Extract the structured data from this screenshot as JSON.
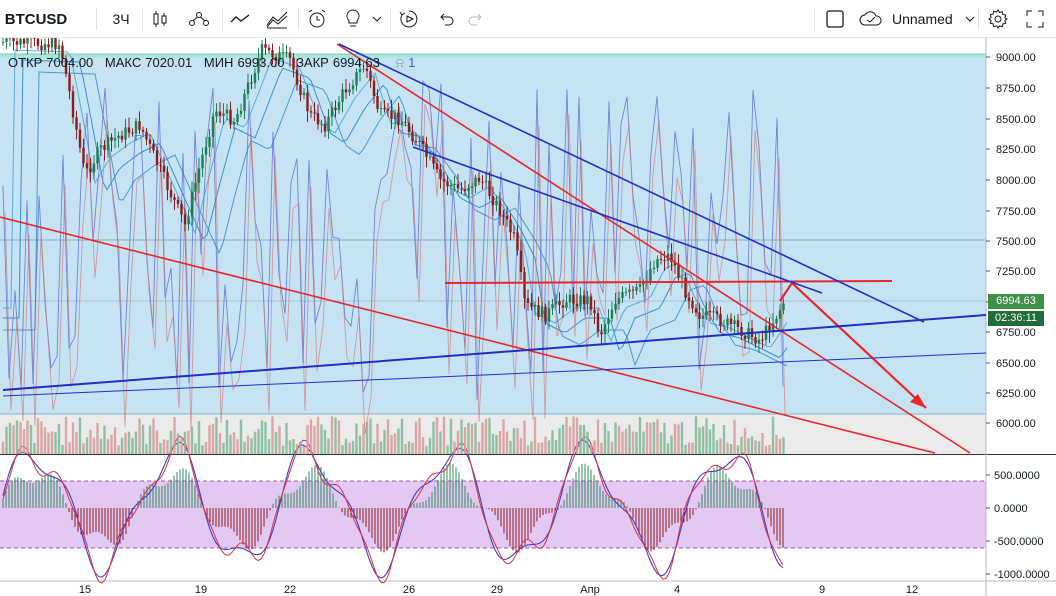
{
  "toolbar": {
    "symbol": "BTCUSD",
    "interval": "3Ч",
    "layout_name": "Unnamed",
    "icons": [
      "candles-icon",
      "indicators-icon",
      "line-icon",
      "compare-icon",
      "alert-icon",
      "bulb-icon",
      "chevron-down-icon",
      "replay-icon",
      "undo-icon",
      "redo-icon",
      "checkbox-icon",
      "cloud-icon",
      "chevron-down-icon",
      "gear-icon",
      "fullscreen-icon"
    ]
  },
  "legend": {
    "open_label": "ОТКР",
    "open_value": "7004.00",
    "high_label": "МАКС",
    "high_value": "7020.01",
    "low_label": "МИН",
    "low_value": "6993.00",
    "close_label": "ЗАКР",
    "close_value": "6994.63",
    "badge": "1"
  },
  "price_axis": {
    "ticks": [
      "9000.00",
      "8750.00",
      "8500.00",
      "8250.00",
      "8000.00",
      "7750.00",
      "7500.00",
      "7250.00",
      "7000.00",
      "6750.00",
      "6500.00",
      "6250.00",
      "6000.00"
    ],
    "last_price": "6994.63",
    "countdown": "02:36:11"
  },
  "osc_axis": {
    "ticks": [
      "500.0000",
      "0.0000",
      "-500.0000",
      "-1000.0000"
    ]
  },
  "time_axis": {
    "ticks": [
      "15",
      "19",
      "22",
      "26",
      "29",
      "Апр",
      "4",
      "9",
      "12"
    ]
  },
  "colors": {
    "bg_main": "#c5e3f2",
    "bg_volume": "#ebebeb",
    "bg_osc": "#e2c8f2",
    "up": "#1e7d53",
    "down": "#8c1d1d",
    "red_line": "#e8262b",
    "blue_line": "#1f2fc6",
    "last_price": "#3f8f47",
    "countdown": "#1f6d3a"
  }
}
